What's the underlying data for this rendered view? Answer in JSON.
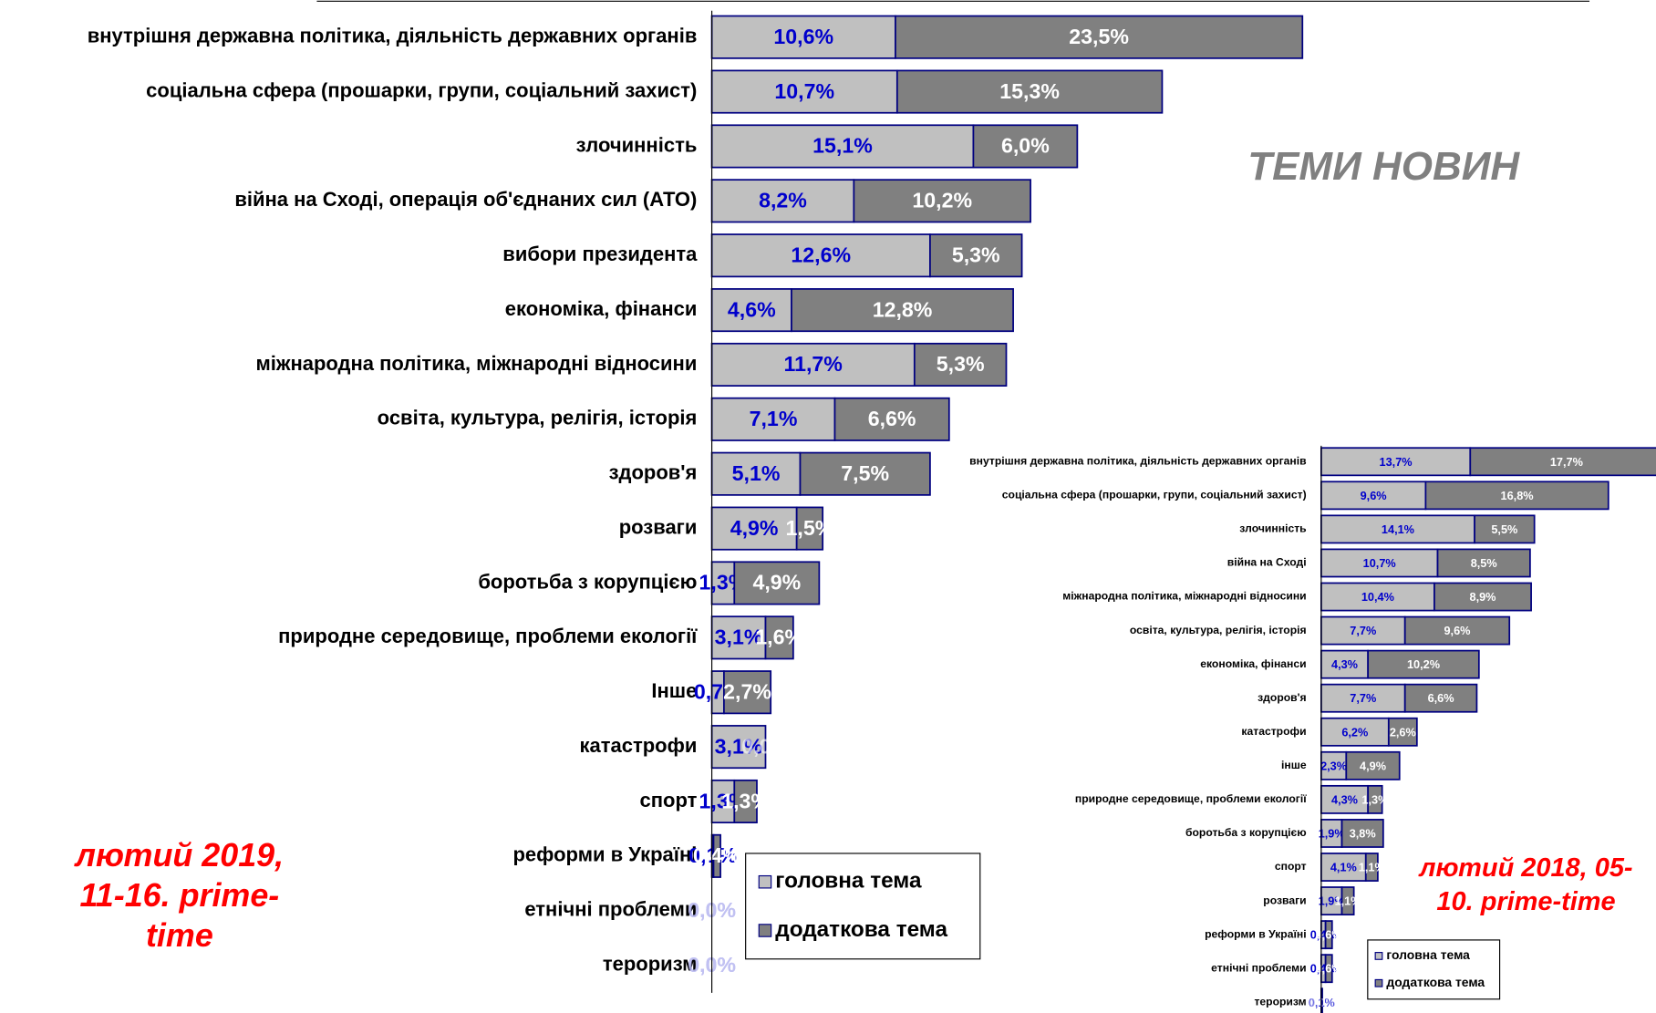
{
  "chart_data": [
    {
      "type": "stacked-bar-horizontal",
      "title": "ТЕМИ НОВИН",
      "annotation_lines": [
        "лютий 2019,",
        "11-16. prime-",
        "time"
      ],
      "categories": [
        "внутрішня державна політика, діяльність державних органів",
        "соціальна сфера (прошарки, групи, соціальний захист)",
        "злочинність",
        "війна на Сході, операція об'єднаних сил (АТО)",
        "вибори президента",
        "економіка, фінанси",
        "міжнародна політика, міжнародні відносини",
        "освіта, культура, релігія, історія",
        "здоров'я",
        "розваги",
        "боротьба з корупцією",
        "природне середовище, проблеми екології",
        "Інше",
        "катастрофи",
        "спорт",
        "реформи в Україні",
        "етнічні проблеми",
        "тероризм"
      ],
      "series": [
        {
          "name": "головна тема",
          "color": "#c0c0c0",
          "label_color": "#0000cc",
          "values": [
            10.6,
            10.7,
            15.1,
            8.2,
            12.6,
            4.6,
            11.7,
            7.1,
            5.1,
            4.9,
            1.3,
            3.1,
            0.7,
            3.1,
            1.3,
            0.1,
            0.0,
            0.0
          ],
          "value_labels": [
            "10,6%",
            "10,7%",
            "15,1%",
            "8,2%",
            "12,6%",
            "4,6%",
            "11,7%",
            "7,1%",
            "5,1%",
            "4,9%",
            "1,3%",
            "3,1%",
            "0,7%",
            "3,1%",
            "1,3%",
            "0,1%",
            "0,0%",
            "0,0%"
          ]
        },
        {
          "name": "додаткова тема",
          "color": "#808080",
          "label_color": "#ffffff",
          "values": [
            23.5,
            15.3,
            6.0,
            10.2,
            5.3,
            12.8,
            5.3,
            6.6,
            7.5,
            1.5,
            4.9,
            1.6,
            2.7,
            0.0,
            1.3,
            0.4,
            0.0,
            0.0
          ],
          "value_labels": [
            "23,5%",
            "15,3%",
            "6,0%",
            "10,2%",
            "5,3%",
            "12,8%",
            "5,3%",
            "6,6%",
            "7,5%",
            "1,5%",
            "4,9%",
            "1,6%",
            "2,7%",
            "0,0%",
            "1,3%",
            "0,4%",
            "0,0%",
            "0,0%"
          ]
        }
      ],
      "legend": "bottom-right"
    },
    {
      "type": "stacked-bar-horizontal",
      "annotation_lines": [
        "лютий 2018,  05-",
        "10. prime-time"
      ],
      "categories": [
        "внутрішня державна політика, діяльність державних органів",
        "соціальна сфера (прошарки, групи, соціальний захист)",
        "злочинність",
        "війна на Сході",
        "міжнародна політика, міжнародні відносини",
        "освіта, культура, релігія, історія",
        "економіка, фінанси",
        "здоров'я",
        "катастрофи",
        "інше",
        "природне середовище, проблеми екології",
        "боротьба з корупцією",
        "спорт",
        "розваги",
        "реформи в Україні",
        "етнічні проблеми",
        "тероризм"
      ],
      "series": [
        {
          "name": "головна тема",
          "color": "#c0c0c0",
          "label_color": "#0000cc",
          "values": [
            13.7,
            9.6,
            14.1,
            10.7,
            10.4,
            7.7,
            4.3,
            7.7,
            6.2,
            2.3,
            4.3,
            1.9,
            4.1,
            1.9,
            0.4,
            0.4,
            0.1
          ],
          "value_labels": [
            "13,7%",
            "9,6%",
            "14,1%",
            "10,7%",
            "10,4%",
            "7,7%",
            "4,3%",
            "7,7%",
            "6,2%",
            "2,3%",
            "4,3%",
            "1,9%",
            "4,1%",
            "1,9%",
            "0,4%",
            "0,4%",
            "0,1%"
          ]
        },
        {
          "name": "додаткова тема",
          "color": "#808080",
          "label_color": "#ffffff",
          "values": [
            17.7,
            16.8,
            5.5,
            8.5,
            8.9,
            9.6,
            10.2,
            6.6,
            2.6,
            4.9,
            1.3,
            3.8,
            1.1,
            1.1,
            0.6,
            0.6,
            0.0
          ],
          "value_labels": [
            "17,7%",
            "16,8%",
            "5,5%",
            "8,5%",
            "8,9%",
            "9,6%",
            "10,2%",
            "6,6%",
            "2,6%",
            "4,9%",
            "1,3%",
            "3,8%",
            "1,1%",
            "1,1%",
            "0,6%",
            "0,6%",
            "0,0%"
          ]
        }
      ],
      "legend": "bottom-right"
    }
  ]
}
